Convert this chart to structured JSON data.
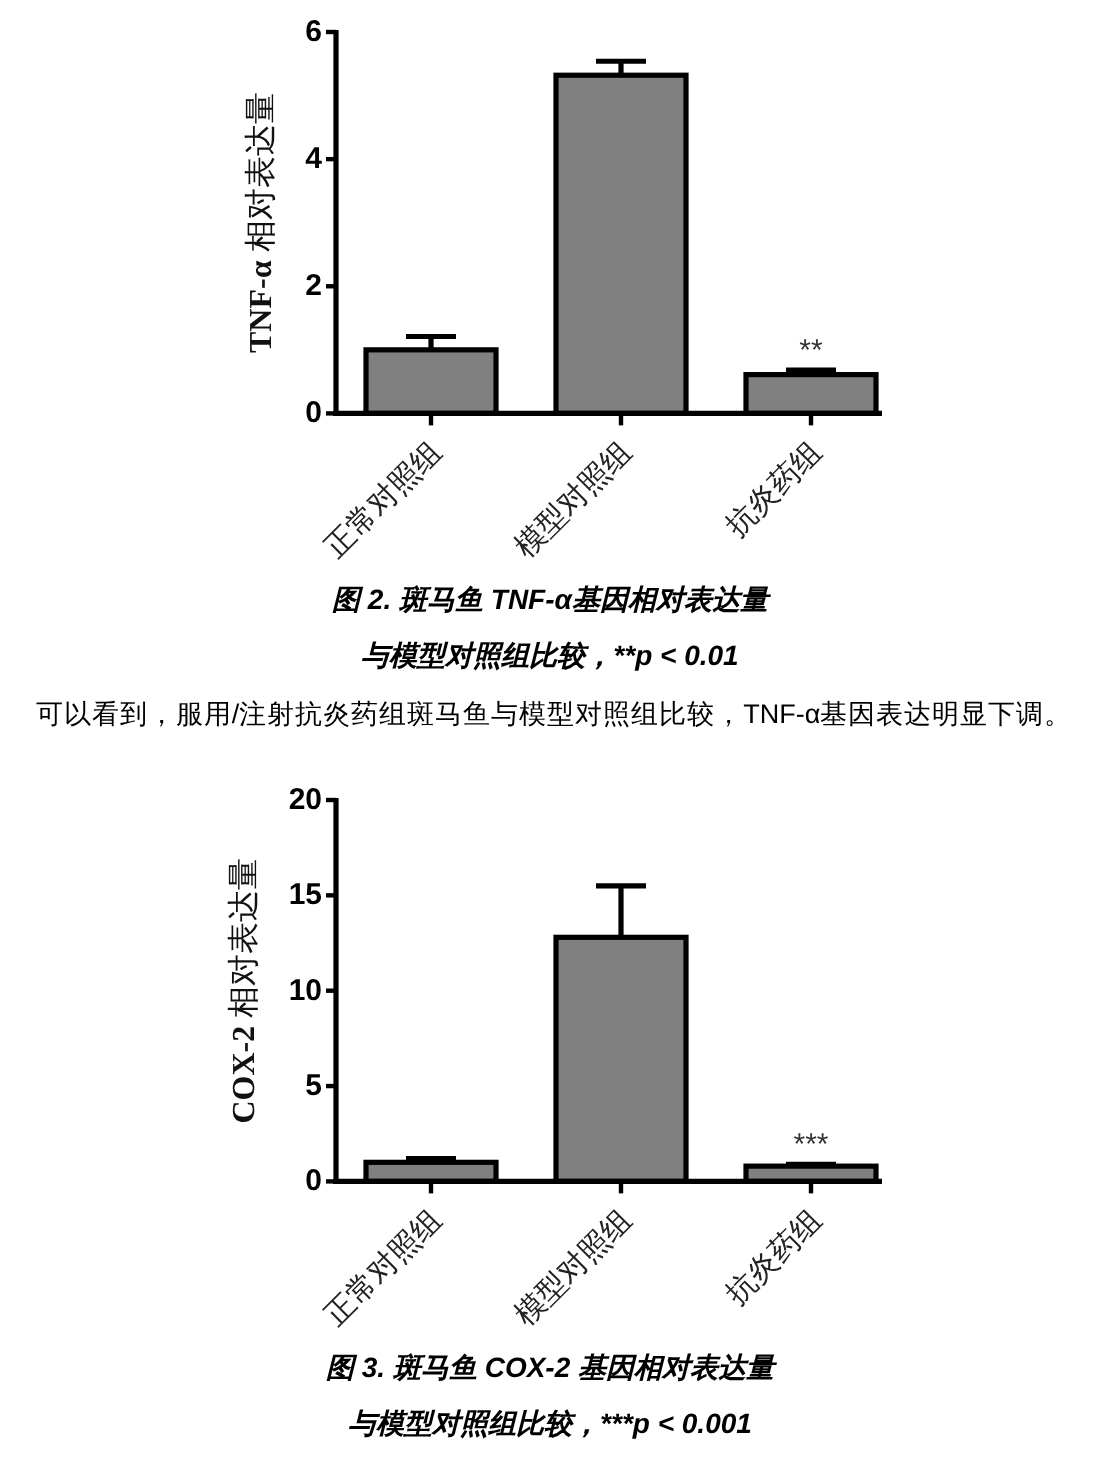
{
  "chart_data": [
    {
      "type": "bar",
      "categories": [
        "正常对照组",
        "模型对照组",
        "抗炎药组"
      ],
      "values": [
        1.0,
        5.32,
        0.61
      ],
      "errors": [
        [
          1.0,
          1.21
        ],
        [
          5.32,
          5.54
        ],
        [
          0.61,
          0.68
        ]
      ],
      "color": "#808080",
      "ylim": [
        0,
        6
      ],
      "yticks": [
        0,
        2,
        4,
        6
      ],
      "ylabel": "TNF-α 相对表达量",
      "title": "图 2. 斑马鱼 TNF-α基因相对表达量",
      "subtitle": "与模型对照组比较，**p < 0.01",
      "annotations": [
        {
          "text": "**",
          "x": "抗炎药组",
          "y": 0.68
        },
        "可以看到，服用/注射抗炎药组斑马鱼与模型对照组比较，TNF-α基因表达明显下调。"
      ]
    },
    {
      "type": "bar",
      "categories": [
        "正常对照组",
        "模型对照组",
        "抗炎药组"
      ],
      "values": [
        1.0,
        12.8,
        0.8
      ],
      "errors": [
        [
          1.0,
          1.2
        ],
        [
          12.8,
          15.5
        ],
        [
          0.8,
          0.9
        ]
      ],
      "color": "#808080",
      "ylim": [
        0,
        20
      ],
      "yticks": [
        0,
        5,
        10,
        15,
        20
      ],
      "ylabel": "COX-2 相对表达量",
      "title": "图 3. 斑马鱼 COX-2 基因相对表达量",
      "subtitle": "与模型对照组比较，***p < 0.001",
      "annotations": [
        {
          "text": "***",
          "x": "抗炎药组",
          "y": 0.9
        }
      ]
    }
  ]
}
